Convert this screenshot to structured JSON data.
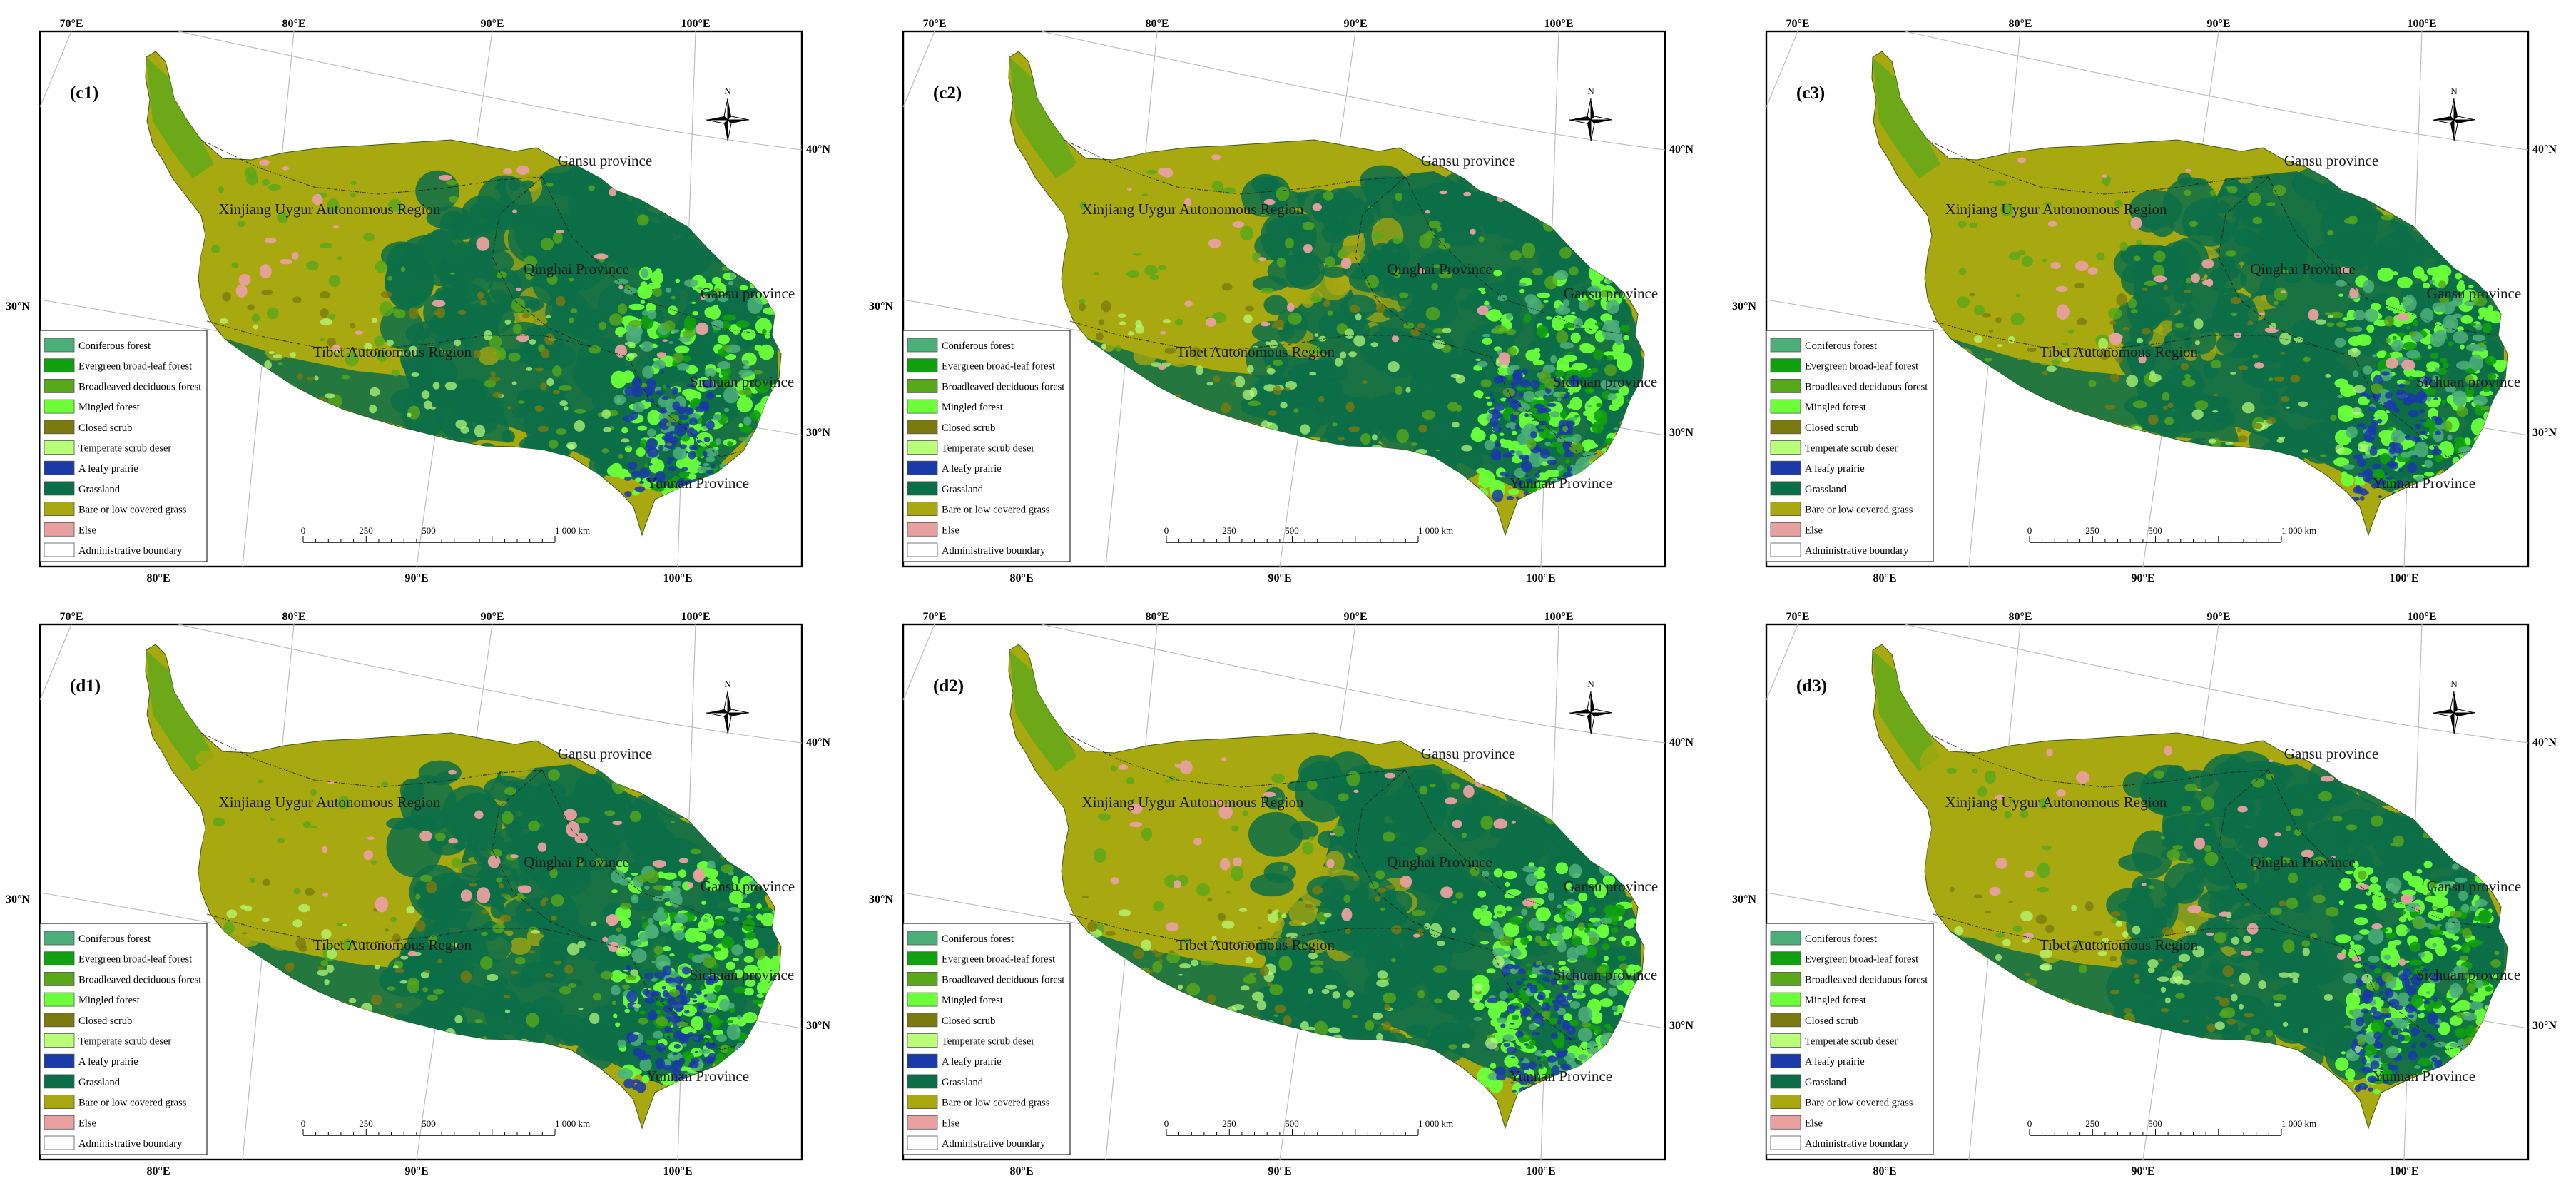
{
  "lon_top": [
    "70°E",
    "80°E",
    "90°E",
    "100°E"
  ],
  "lon_bottom": [
    "80°E",
    "90°E",
    "100°E"
  ],
  "lat_right": [
    "40°N",
    "30°N"
  ],
  "lat_left": [
    "30°N"
  ],
  "regions": [
    "Xinjiang Uygur Autonomous Region",
    "Gansu province",
    "Qinghai Province",
    "Gansu province",
    "Tibet Autonomous Region",
    "Sichuan province",
    "Yunnan Province"
  ],
  "legend": [
    {
      "label": "Coniferous forest",
      "color": "#4caf7a"
    },
    {
      "label": "Evergreen broad-leaf forest",
      "color": "#10a010"
    },
    {
      "label": "Broadleaved deciduous forest",
      "color": "#58a81a"
    },
    {
      "label": "Mingled forest",
      "color": "#6cff3a"
    },
    {
      "label": "Closed scrub",
      "color": "#7a7a10"
    },
    {
      "label": "Temperate scrub deser",
      "color": "#baff7a"
    },
    {
      "label": "A leafy prairie",
      "color": "#1a3aa8"
    },
    {
      "label": "Grassland",
      "color": "#0c6e48"
    },
    {
      "label": "Bare or low covered grass",
      "color": "#a8a810"
    },
    {
      "label": "Else",
      "color": "#e8a0a0"
    },
    {
      "label": "Administrative boundary",
      "color": "#ffffff"
    }
  ],
  "scale": {
    "ticks": [
      "0",
      "250",
      "500",
      "1 000 km"
    ]
  },
  "north_label": "N",
  "panels": [
    {
      "label": "(c1)"
    },
    {
      "label": "(c2)"
    },
    {
      "label": "(c3)"
    },
    {
      "label": "(d1)"
    },
    {
      "label": "(d2)"
    },
    {
      "label": "(d3)"
    }
  ]
}
